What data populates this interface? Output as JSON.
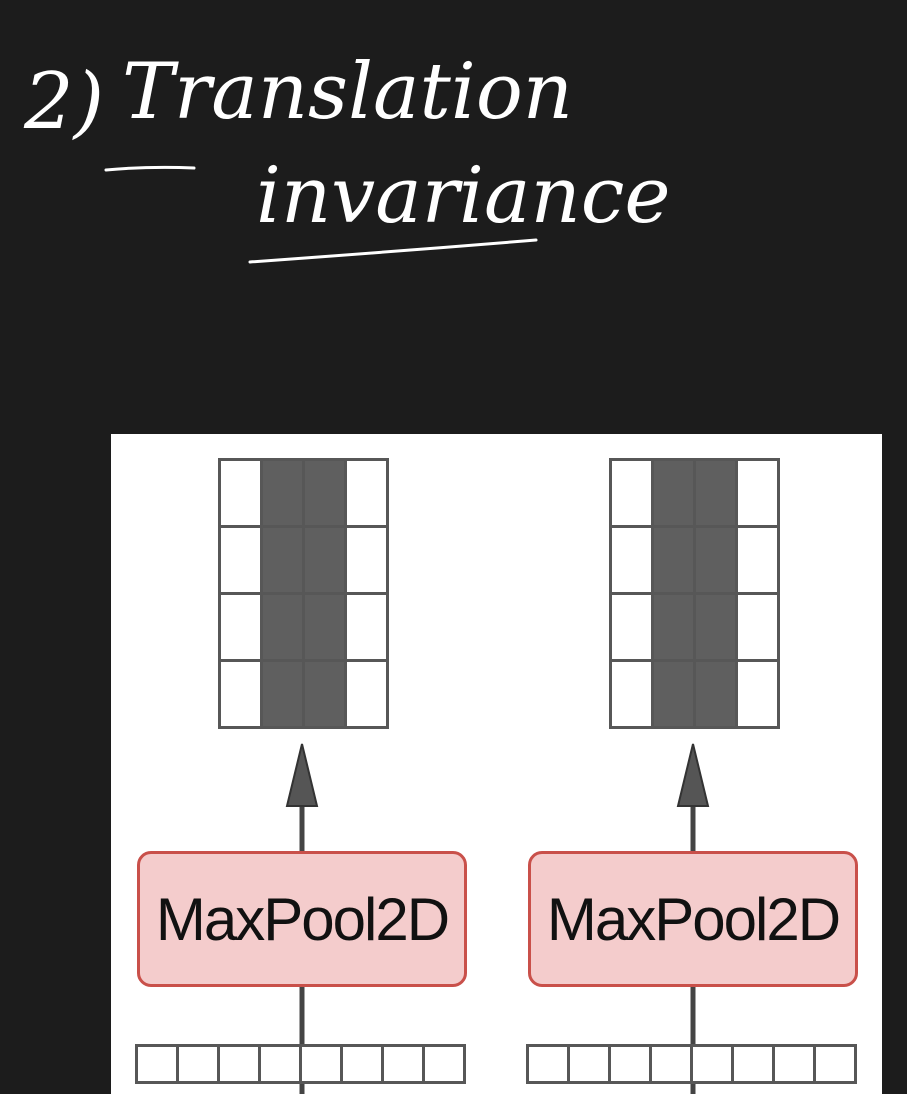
{
  "notes": {
    "number": "2)",
    "line1": "Translation",
    "line2": "invariance"
  },
  "diagram": {
    "blocks": [
      {
        "label": "MaxPool2D"
      },
      {
        "label": "MaxPool2D"
      }
    ],
    "colors": {
      "block_fill": "#f4cccc",
      "block_border": "#c9504a",
      "cell_dark": "#5f5f5f",
      "cell_border": "#575757"
    },
    "output_grid": {
      "rows": 4,
      "cols": 4,
      "dark_cols": [
        1,
        2
      ]
    },
    "input_grid_visible_cols": 8
  }
}
